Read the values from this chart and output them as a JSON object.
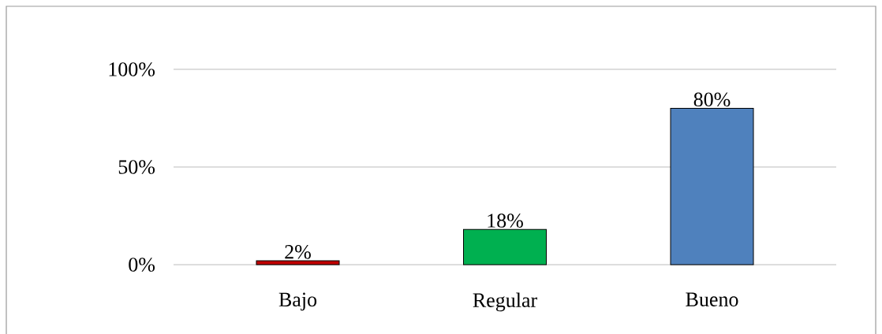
{
  "chart_data": {
    "type": "bar",
    "categories": [
      "Bajo",
      "Regular",
      "Bueno"
    ],
    "values": [
      2,
      18,
      80
    ],
    "colors": [
      "#c00000",
      "#00b050",
      "#4f81bd"
    ],
    "value_labels": [
      "2%",
      "18%",
      "80%"
    ],
    "ylim": [
      0,
      100
    ],
    "yticks": [
      {
        "value": 0,
        "label": "0%"
      },
      {
        "value": 50,
        "label": "50%"
      },
      {
        "value": 100,
        "label": "100%"
      }
    ],
    "grid": "y"
  }
}
